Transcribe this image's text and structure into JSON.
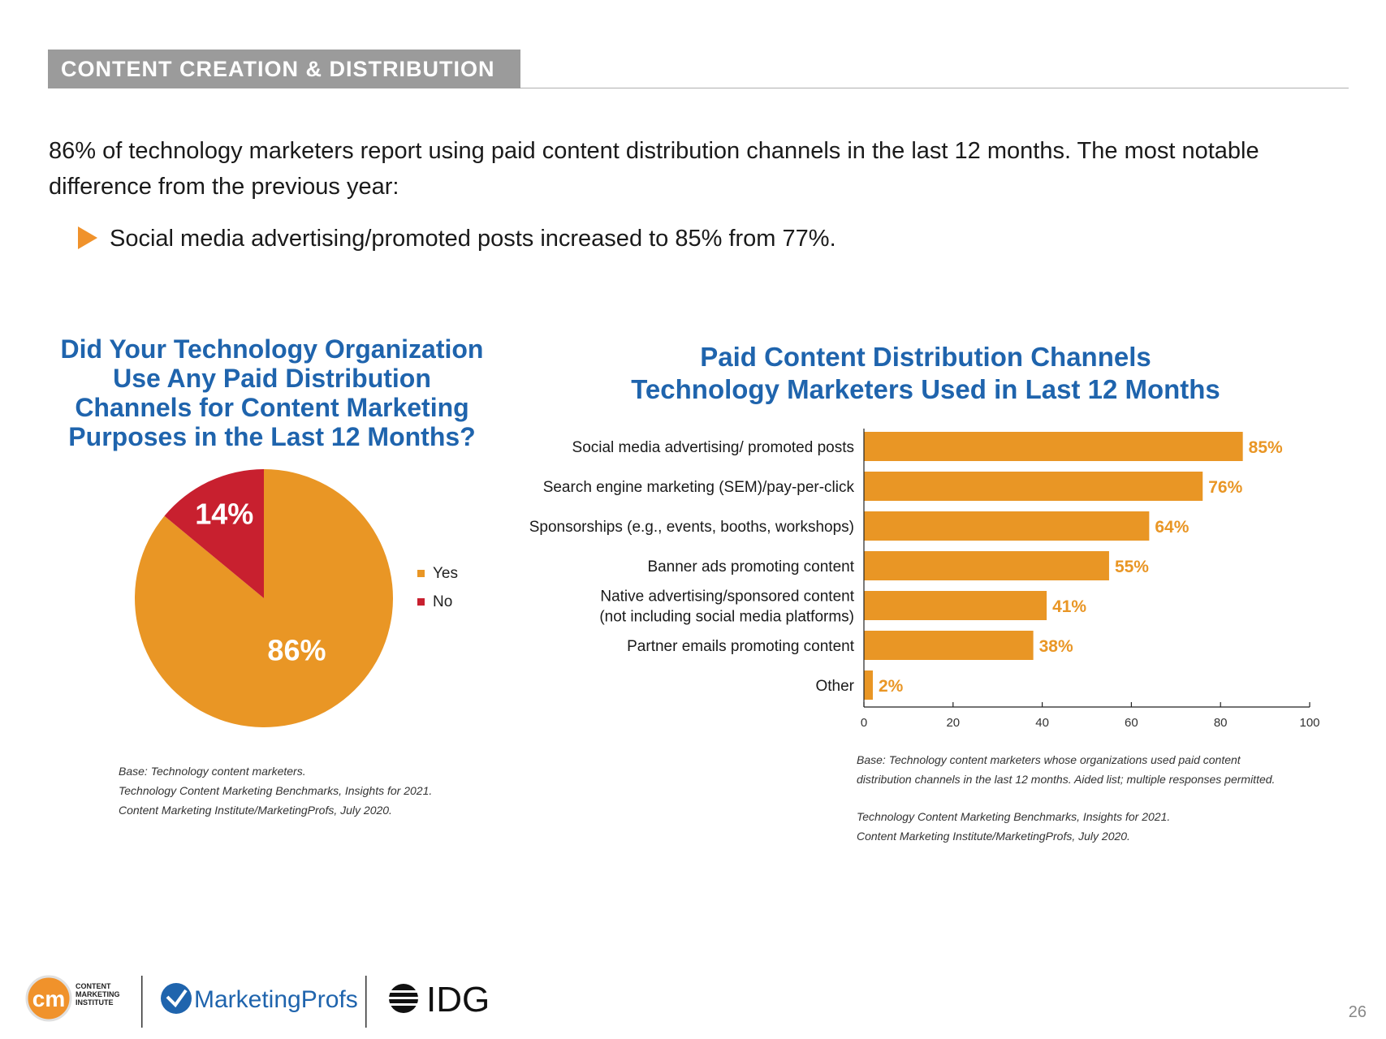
{
  "header": {
    "section": "CONTENT CREATION & DISTRIBUTION"
  },
  "intro": {
    "paragraph": "86% of technology marketers report using paid content distribution channels in the last 12 months. The most notable difference from the previous year:",
    "bullet": "Social media advertising/promoted posts increased to 85% from 77%."
  },
  "colors": {
    "orange": "#e99625",
    "red": "#c8202f",
    "blue": "#1f64ad",
    "arrow": "#f0922b"
  },
  "chart_data": [
    {
      "type": "pie",
      "title_lines": [
        "Did Your Technology Organization",
        "Use Any Paid Distribution",
        "Channels for Content Marketing",
        "Purposes in the Last 12 Months?"
      ],
      "slices": [
        {
          "label": "Yes",
          "value": 86,
          "text": "86%",
          "color": "#e99625"
        },
        {
          "label": "No",
          "value": 14,
          "text": "14%",
          "color": "#c8202f"
        }
      ],
      "legend": "right",
      "source_lines": [
        "Base: Technology content marketers.",
        "Technology Content Marketing Benchmarks, Insights for 2021.",
        "Content Marketing Institute/MarketingProfs, July 2020."
      ]
    },
    {
      "type": "bar",
      "orientation": "horizontal",
      "title_lines": [
        "Paid Content Distribution Channels",
        "Technology Marketers Used in Last 12 Months"
      ],
      "categories": [
        [
          "Social media advertising/ promoted posts"
        ],
        [
          "Search engine marketing (SEM)/pay-per-click"
        ],
        [
          "Sponsorships (e.g., events, booths, workshops)"
        ],
        [
          "Banner ads promoting content"
        ],
        [
          "Native advertising/sponsored content",
          "(not including social media platforms)"
        ],
        [
          "Partner emails promoting content"
        ],
        [
          "Other"
        ]
      ],
      "values": [
        85,
        76,
        64,
        55,
        41,
        38,
        2
      ],
      "value_labels": [
        "85%",
        "76%",
        "64%",
        "55%",
        "41%",
        "38%",
        "2%"
      ],
      "xlim": [
        0,
        100
      ],
      "xticks": [
        "0",
        "20",
        "40",
        "60",
        "80",
        "100"
      ],
      "color": "#e99625",
      "source1_lines": [
        "Base: Technology content marketers whose organizations used paid content",
        "distribution channels in the last 12 months. Aided list; multiple responses permitted."
      ],
      "source2_lines": [
        "Technology Content Marketing Benchmarks, Insights for 2021.",
        "Content Marketing Institute/MarketingProfs, July 2020."
      ]
    }
  ],
  "footer": {
    "cmi_mark": "cm",
    "cmi_text": [
      "CONTENT",
      "MARKETING",
      "INSTITUTE"
    ],
    "mprofs": "MarketingProfs",
    "idg": "IDG",
    "page": "26"
  }
}
